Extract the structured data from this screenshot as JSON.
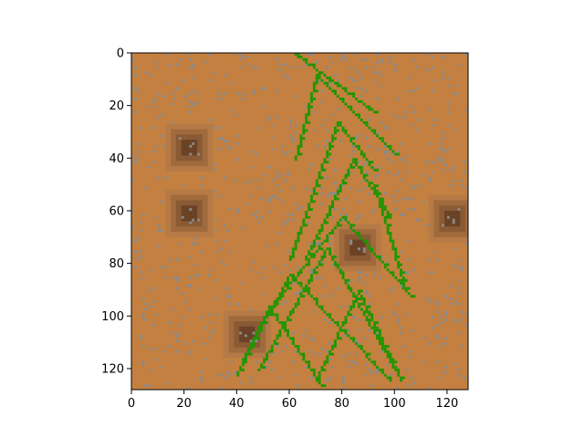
{
  "chart_data": {
    "type": "heatmap",
    "title": "",
    "xlabel": "",
    "ylabel": "",
    "xlim": [
      0,
      128
    ],
    "ylim": [
      128,
      0
    ],
    "grid": false,
    "x_ticks": [
      0,
      20,
      40,
      60,
      80,
      100,
      120
    ],
    "y_ticks": [
      0,
      20,
      40,
      60,
      80,
      100,
      120
    ],
    "x_tick_labels": [
      "0",
      "20",
      "40",
      "60",
      "80",
      "100",
      "120"
    ],
    "y_tick_labels": [
      "0",
      "20",
      "40",
      "60",
      "80",
      "100",
      "120"
    ],
    "grid_size": [
      128,
      128
    ],
    "colors": {
      "background": "#c48040",
      "pebble": "#8a8a8a",
      "vegetation": "#1e9600",
      "pit_rings": [
        "#b57a45",
        "#a06a3c",
        "#8a5a35",
        "#6b4226"
      ]
    },
    "pits": [
      {
        "x": 22,
        "y": 36
      },
      {
        "x": 22,
        "y": 61
      },
      {
        "x": 122,
        "y": 63
      },
      {
        "x": 86,
        "y": 74
      },
      {
        "x": 44,
        "y": 107
      }
    ],
    "vegetation_branches": [
      {
        "from": [
          62,
          0
        ],
        "to": [
          92,
          22
        ]
      },
      {
        "from": [
          70,
          8
        ],
        "to": [
          62,
          40
        ]
      },
      {
        "from": [
          70,
          8
        ],
        "to": [
          100,
          38
        ]
      },
      {
        "from": [
          78,
          26
        ],
        "to": [
          60,
          78
        ]
      },
      {
        "from": [
          78,
          26
        ],
        "to": [
          92,
          44
        ]
      },
      {
        "from": [
          84,
          40
        ],
        "to": [
          98,
          62
        ]
      },
      {
        "from": [
          84,
          40
        ],
        "to": [
          66,
          78
        ]
      },
      {
        "from": [
          92,
          50
        ],
        "to": [
          104,
          90
        ]
      },
      {
        "from": [
          80,
          62
        ],
        "to": [
          50,
          100
        ]
      },
      {
        "from": [
          80,
          62
        ],
        "to": [
          106,
          92
        ]
      },
      {
        "from": [
          74,
          74
        ],
        "to": [
          100,
          120
        ]
      },
      {
        "from": [
          74,
          74
        ],
        "to": [
          48,
          120
        ]
      },
      {
        "from": [
          60,
          84
        ],
        "to": [
          42,
          116
        ]
      },
      {
        "from": [
          60,
          84
        ],
        "to": [
          98,
          124
        ]
      },
      {
        "from": [
          86,
          90
        ],
        "to": [
          70,
          124
        ]
      },
      {
        "from": [
          86,
          90
        ],
        "to": [
          102,
          124
        ]
      },
      {
        "from": [
          52,
          96
        ],
        "to": [
          40,
          122
        ]
      },
      {
        "from": [
          52,
          96
        ],
        "to": [
          72,
          126
        ]
      }
    ]
  }
}
